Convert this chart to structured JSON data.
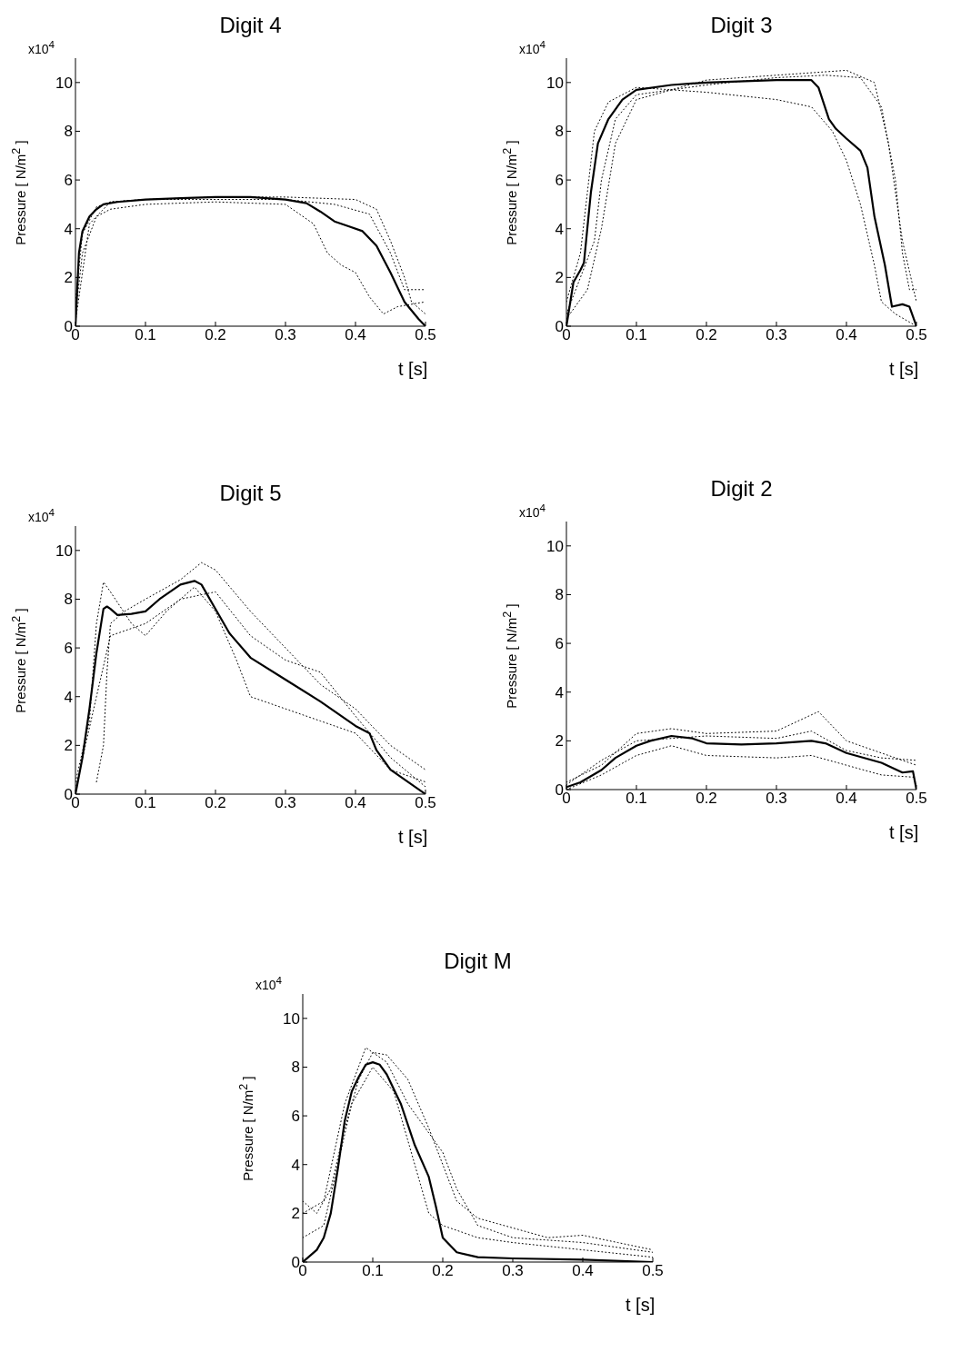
{
  "chart_data": [
    {
      "type": "line",
      "title": "Digit  4",
      "xlabel": "t [s]",
      "ylabel": "Pressure [ N/m$^{2}$ ]",
      "annotations": [
        "x10$^{4}$"
      ],
      "xlim": [
        0,
        0.5
      ],
      "ylim": [
        0,
        11
      ],
      "xticks": [
        0,
        0.1,
        0.2,
        0.3,
        0.4,
        0.5
      ],
      "yticks": [
        0,
        2,
        4,
        6,
        8,
        10
      ],
      "series": [
        {
          "color": "#000000",
          "line_style": "dotted",
          "x": [
            0,
            0.01,
            0.03,
            0.05,
            0.1,
            0.2,
            0.3,
            0.34,
            0.36,
            0.38,
            0.4,
            0.42,
            0.44,
            0.46,
            0.5
          ],
          "values": [
            0.5,
            3,
            4.5,
            4.8,
            5.0,
            5.1,
            5.0,
            4.2,
            3.0,
            2.5,
            2.2,
            1.2,
            0.5,
            0.8,
            1.0
          ]
        },
        {
          "color": "#000000",
          "line_style": "dotted",
          "x": [
            0,
            0.01,
            0.03,
            0.05,
            0.1,
            0.2,
            0.3,
            0.4,
            0.43,
            0.45,
            0.47,
            0.48,
            0.5
          ],
          "values": [
            1,
            3.8,
            4.9,
            5.1,
            5.2,
            5.3,
            5.3,
            5.2,
            4.8,
            3.5,
            2.0,
            1.0,
            0.5
          ]
        },
        {
          "color": "#000000",
          "line_style": "dotted",
          "x": [
            0,
            0.02,
            0.05,
            0.1,
            0.2,
            0.3,
            0.37,
            0.42,
            0.45,
            0.47,
            0.5
          ],
          "values": [
            0.2,
            4.2,
            5.1,
            5.2,
            5.2,
            5.2,
            5.0,
            4.6,
            3.0,
            1.5,
            1.5
          ]
        },
        {
          "color": "#000000",
          "line_style": "solid",
          "x": [
            0,
            0.005,
            0.01,
            0.02,
            0.03,
            0.04,
            0.06,
            0.1,
            0.15,
            0.2,
            0.25,
            0.3,
            0.33,
            0.35,
            0.37,
            0.39,
            0.41,
            0.43,
            0.45,
            0.47,
            0.49,
            0.5
          ],
          "values": [
            0,
            3,
            3.9,
            4.5,
            4.8,
            5.0,
            5.1,
            5.2,
            5.25,
            5.3,
            5.3,
            5.2,
            5.05,
            4.7,
            4.3,
            4.1,
            3.9,
            3.3,
            2.2,
            1.0,
            0.3,
            0
          ]
        }
      ]
    },
    {
      "type": "line",
      "title": "Digit  3",
      "xlabel": "t [s]",
      "ylabel": "Pressure [ N/m$^{2}$ ]",
      "annotations": [
        "x10$^{4}$"
      ],
      "xlim": [
        0,
        0.5
      ],
      "ylim": [
        0,
        11
      ],
      "xticks": [
        0,
        0.1,
        0.2,
        0.3,
        0.4,
        0.5
      ],
      "yticks": [
        0,
        2,
        4,
        6,
        8,
        10
      ],
      "series": [
        {
          "color": "#000000",
          "line_style": "dotted",
          "x": [
            0,
            0.02,
            0.04,
            0.05,
            0.07,
            0.1,
            0.2,
            0.3,
            0.37,
            0.42,
            0.45,
            0.47,
            0.48,
            0.49,
            0.5
          ],
          "values": [
            0.5,
            2,
            3.5,
            6,
            8.5,
            9.5,
            9.9,
            10.2,
            10.3,
            10.2,
            9.0,
            6,
            3,
            1.5,
            1.5
          ]
        },
        {
          "color": "#000000",
          "line_style": "dotted",
          "x": [
            0,
            0.02,
            0.04,
            0.06,
            0.1,
            0.2,
            0.3,
            0.35,
            0.38,
            0.4,
            0.42,
            0.44,
            0.45,
            0.47,
            0.5
          ],
          "values": [
            1,
            3,
            8,
            9.2,
            9.8,
            9.6,
            9.3,
            9.0,
            8.0,
            6.8,
            5,
            2.5,
            1.0,
            0.5,
            0
          ]
        },
        {
          "color": "#000000",
          "line_style": "dotted",
          "x": [
            0,
            0.03,
            0.05,
            0.07,
            0.1,
            0.2,
            0.3,
            0.4,
            0.44,
            0.46,
            0.48,
            0.5
          ],
          "values": [
            0.3,
            1.5,
            4,
            7.5,
            9.3,
            10.1,
            10.3,
            10.5,
            10.0,
            7.5,
            3.5,
            1.0
          ]
        },
        {
          "color": "#000000",
          "line_style": "solid",
          "x": [
            0,
            0.01,
            0.02,
            0.025,
            0.035,
            0.045,
            0.06,
            0.08,
            0.1,
            0.15,
            0.2,
            0.3,
            0.35,
            0.36,
            0.375,
            0.385,
            0.4,
            0.42,
            0.43,
            0.44,
            0.455,
            0.465,
            0.48,
            0.49,
            0.5
          ],
          "values": [
            0,
            1.8,
            2.3,
            2.6,
            5.5,
            7.5,
            8.5,
            9.3,
            9.7,
            9.9,
            10.0,
            10.1,
            10.1,
            9.8,
            8.5,
            8.1,
            7.7,
            7.2,
            6.5,
            4.5,
            2.5,
            0.8,
            0.9,
            0.8,
            0
          ]
        }
      ]
    },
    {
      "type": "line",
      "title": "Digit  5",
      "xlabel": "t [s]",
      "ylabel": "Pressure [ N/m$^{2}$ ]",
      "annotations": [
        "x10$^{4}$"
      ],
      "xlim": [
        0,
        0.5
      ],
      "ylim": [
        0,
        11
      ],
      "xticks": [
        0,
        0.1,
        0.2,
        0.3,
        0.4,
        0.5
      ],
      "yticks": [
        0,
        2,
        4,
        6,
        8,
        10
      ],
      "series": [
        {
          "color": "#000000",
          "line_style": "dotted",
          "x": [
            0.03,
            0.04,
            0.045,
            0.05,
            0.07,
            0.1,
            0.15,
            0.18,
            0.2,
            0.25,
            0.3,
            0.35,
            0.4,
            0.45,
            0.5
          ],
          "values": [
            0.5,
            2,
            5,
            7,
            7.5,
            8.0,
            8.8,
            9.5,
            9.2,
            7.5,
            6.0,
            4.5,
            3.5,
            2.0,
            1.0
          ]
        },
        {
          "color": "#000000",
          "line_style": "dotted",
          "x": [
            0,
            0.02,
            0.03,
            0.04,
            0.05,
            0.08,
            0.1,
            0.13,
            0.17,
            0.2,
            0.23,
            0.25,
            0.3,
            0.35,
            0.4,
            0.45,
            0.5
          ],
          "values": [
            0.5,
            3,
            7.0,
            8.7,
            8.3,
            7.0,
            6.5,
            7.5,
            8.5,
            7.5,
            5.5,
            4.0,
            3.5,
            3.0,
            2.5,
            1.0,
            0.5
          ]
        },
        {
          "color": "#000000",
          "line_style": "dotted",
          "x": [
            0,
            0.03,
            0.05,
            0.1,
            0.15,
            0.2,
            0.25,
            0.3,
            0.35,
            0.4,
            0.45,
            0.5
          ],
          "values": [
            0.2,
            4,
            6.5,
            7.0,
            8.0,
            8.3,
            6.5,
            5.5,
            5.0,
            3.2,
            1.5,
            0.3
          ]
        },
        {
          "color": "#000000",
          "line_style": "solid",
          "x": [
            0,
            0.01,
            0.02,
            0.03,
            0.04,
            0.045,
            0.05,
            0.06,
            0.08,
            0.1,
            0.12,
            0.15,
            0.17,
            0.18,
            0.2,
            0.22,
            0.25,
            0.3,
            0.35,
            0.4,
            0.42,
            0.43,
            0.45,
            0.5
          ],
          "values": [
            0,
            1.5,
            3.5,
            5.8,
            7.6,
            7.7,
            7.6,
            7.35,
            7.4,
            7.5,
            8.0,
            8.6,
            8.75,
            8.6,
            7.6,
            6.6,
            5.6,
            4.7,
            3.8,
            2.8,
            2.5,
            1.8,
            1.0,
            0
          ]
        }
      ]
    },
    {
      "type": "line",
      "title": "Digit  2",
      "xlabel": "t [s]",
      "ylabel": "Pressure [ N/m$^{2}$ ]",
      "annotations": [
        "x10$^{4}$"
      ],
      "xlim": [
        0,
        0.5
      ],
      "ylim": [
        0,
        11
      ],
      "xticks": [
        0,
        0.1,
        0.2,
        0.3,
        0.4,
        0.5
      ],
      "yticks": [
        0,
        2,
        4,
        6,
        8,
        10
      ],
      "series": [
        {
          "color": "#000000",
          "line_style": "dotted",
          "x": [
            0,
            0.05,
            0.1,
            0.15,
            0.2,
            0.3,
            0.36,
            0.4,
            0.45,
            0.5
          ],
          "values": [
            0.3,
            1.0,
            2.3,
            2.5,
            2.3,
            2.4,
            3.2,
            2.0,
            1.5,
            1.0
          ]
        },
        {
          "color": "#000000",
          "line_style": "dotted",
          "x": [
            0,
            0.05,
            0.1,
            0.15,
            0.2,
            0.3,
            0.35,
            0.4,
            0.45,
            0.5
          ],
          "values": [
            0,
            0.6,
            1.4,
            1.8,
            1.4,
            1.3,
            1.4,
            1.0,
            0.6,
            0.5
          ]
        },
        {
          "color": "#000000",
          "line_style": "dotted",
          "x": [
            0,
            0.05,
            0.1,
            0.15,
            0.2,
            0.3,
            0.35,
            0.4,
            0.45,
            0.5
          ],
          "values": [
            0.2,
            1.2,
            2.0,
            2.1,
            2.2,
            2.1,
            2.4,
            1.6,
            1.3,
            1.2
          ]
        },
        {
          "color": "#000000",
          "line_style": "solid",
          "x": [
            0,
            0.02,
            0.05,
            0.07,
            0.1,
            0.12,
            0.15,
            0.18,
            0.2,
            0.25,
            0.3,
            0.35,
            0.37,
            0.4,
            0.45,
            0.48,
            0.495,
            0.5
          ],
          "values": [
            0.1,
            0.3,
            0.8,
            1.3,
            1.8,
            2.0,
            2.2,
            2.1,
            1.9,
            1.85,
            1.9,
            2.0,
            1.9,
            1.5,
            1.1,
            0.7,
            0.75,
            0
          ]
        }
      ]
    },
    {
      "type": "line",
      "title": "Digit  M",
      "xlabel": "t [s]",
      "ylabel": "Pressure [ N/m$^{2}$ ]",
      "annotations": [
        "x10$^{4}$"
      ],
      "xlim": [
        0,
        0.5
      ],
      "ylim": [
        0,
        11
      ],
      "xticks": [
        0,
        0.1,
        0.2,
        0.3,
        0.4,
        0.5
      ],
      "yticks": [
        0,
        2,
        4,
        6,
        8,
        10
      ],
      "series": [
        {
          "color": "#000000",
          "line_style": "dotted",
          "x": [
            0,
            0.02,
            0.04,
            0.06,
            0.08,
            0.1,
            0.12,
            0.15,
            0.18,
            0.2,
            0.22,
            0.25,
            0.3,
            0.35,
            0.4,
            0.45,
            0.5
          ],
          "values": [
            2.5,
            2.0,
            3.0,
            5.5,
            7.5,
            8.6,
            8.5,
            7.5,
            5.5,
            4.0,
            2.5,
            1.8,
            1.4,
            1.0,
            1.1,
            0.8,
            0.5
          ]
        },
        {
          "color": "#000000",
          "line_style": "dotted",
          "x": [
            0,
            0.03,
            0.05,
            0.07,
            0.1,
            0.13,
            0.16,
            0.18,
            0.2,
            0.25,
            0.3,
            0.4,
            0.5
          ],
          "values": [
            1.0,
            1.5,
            4.0,
            6.5,
            8.0,
            7.0,
            4.0,
            2.0,
            1.5,
            1.0,
            0.8,
            0.5,
            0.2
          ]
        },
        {
          "color": "#000000",
          "line_style": "dotted",
          "x": [
            0,
            0.03,
            0.06,
            0.09,
            0.12,
            0.15,
            0.2,
            0.22,
            0.25,
            0.3,
            0.4,
            0.5
          ],
          "values": [
            2.0,
            2.5,
            6.5,
            8.8,
            8.2,
            6.5,
            4.5,
            3.0,
            1.5,
            1.0,
            0.8,
            0.4
          ]
        },
        {
          "color": "#000000",
          "line_style": "solid",
          "x": [
            0,
            0.02,
            0.03,
            0.04,
            0.05,
            0.06,
            0.07,
            0.08,
            0.09,
            0.1,
            0.11,
            0.12,
            0.14,
            0.16,
            0.18,
            0.19,
            0.2,
            0.22,
            0.25,
            0.3,
            0.4,
            0.5
          ],
          "values": [
            0,
            0.5,
            1,
            2,
            3.8,
            5.8,
            7.0,
            7.6,
            8.1,
            8.2,
            8.1,
            7.7,
            6.5,
            4.8,
            3.5,
            2.3,
            1.0,
            0.4,
            0.2,
            0.15,
            0.1,
            0
          ]
        }
      ]
    }
  ]
}
